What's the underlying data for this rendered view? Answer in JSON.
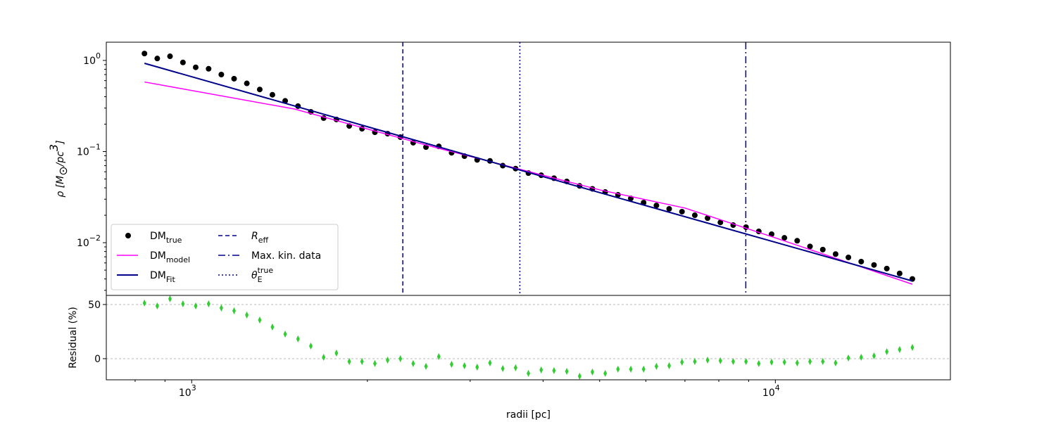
{
  "chart_data": [
    {
      "type": "line",
      "xscale": "log",
      "yscale": "log",
      "ylabel": "ρ [M",
      "ylabel_sub": "⊙",
      "ylabel_mid": "/pc",
      "ylabel_sup": "3",
      "ylabel_end": "]",
      "xlim": [
        714,
        19950
      ],
      "ylim": [
        0.00264,
        1.585
      ],
      "yticks": [
        {
          "value": 0.01,
          "label": "10",
          "sup": "−2"
        },
        {
          "value": 0.1,
          "label": "10",
          "sup": "−1"
        },
        {
          "value": 1,
          "label": "10",
          "sup": "0"
        }
      ],
      "yminorticks": [
        0.003,
        0.004,
        0.005,
        0.006,
        0.007,
        0.008,
        0.009,
        0.02,
        0.03,
        0.04,
        0.05,
        0.06,
        0.07,
        0.08,
        0.09,
        0.2,
        0.3,
        0.4,
        0.5,
        0.6,
        0.7,
        0.8,
        0.9
      ],
      "legend": "lower left",
      "series": [
        {
          "name": "DM",
          "name_sub": "true",
          "color": "#000000",
          "marker": "circle",
          "x": [
            830,
            873,
            918,
            966,
            1016,
            1069,
            1124,
            1182,
            1243,
            1308,
            1375,
            1446,
            1521,
            1600,
            1683,
            1770,
            1862,
            1958,
            2060,
            2166,
            2278,
            2396,
            2520,
            2651,
            2788,
            2933,
            3084,
            3244,
            3412,
            3589,
            3775,
            3970,
            4176,
            4392,
            4620,
            4859,
            5111,
            5375,
            5654,
            5947,
            6255,
            6578,
            6919,
            7278,
            7654,
            8051,
            8468,
            8907,
            9368,
            9853,
            10364,
            10900,
            11465,
            12059,
            12684,
            13341,
            14032,
            14759,
            15523,
            16328,
            17170
          ],
          "values": [
            1.19,
            1.05,
            1.11,
            0.95,
            0.84,
            0.81,
            0.7,
            0.63,
            0.56,
            0.48,
            0.42,
            0.36,
            0.315,
            0.273,
            0.233,
            0.225,
            0.191,
            0.178,
            0.163,
            0.157,
            0.144,
            0.125,
            0.112,
            0.114,
            0.097,
            0.089,
            0.081,
            0.079,
            0.07,
            0.065,
            0.058,
            0.055,
            0.051,
            0.047,
            0.042,
            0.039,
            0.036,
            0.0335,
            0.0306,
            0.0275,
            0.0256,
            0.0235,
            0.0219,
            0.02,
            0.0186,
            0.0167,
            0.0156,
            0.0148,
            0.0133,
            0.0124,
            0.0113,
            0.0105,
            0.0091,
            0.0084,
            0.0075,
            0.0069,
            0.0062,
            0.0057,
            0.0052,
            0.0046,
            0.004
          ]
        },
        {
          "name": "DM",
          "name_sub": "model",
          "color": "#ff00ff",
          "marker": "line",
          "width": 1.5,
          "x": [
            830,
            1500,
            2520,
            5000,
            7000,
            10000,
            17170
          ],
          "values": [
            0.58,
            0.293,
            0.118,
            0.038,
            0.024,
            0.0113,
            0.0035
          ]
        },
        {
          "name": "DM",
          "name_sub": "Fit",
          "color": "#00008b",
          "marker": "line",
          "width": 2,
          "x": [
            830,
            3775,
            17170
          ],
          "values": [
            0.93,
            0.059,
            0.0038
          ]
        }
      ],
      "vlines": [
        {
          "x": 2300,
          "style": "dashed",
          "color": "#00008b",
          "label": "R",
          "label_sub": "eff"
        },
        {
          "x": 8900,
          "style": "dashdot",
          "color": "#00008b",
          "label": "Max. kin. data"
        },
        {
          "x": 3650,
          "style": "dotted",
          "color": "#00008b",
          "label": "θ",
          "label_sub": "E",
          "label_sup": "true"
        }
      ]
    },
    {
      "type": "scatter",
      "xscale": "log",
      "xlabel": "radii [pc]",
      "ylabel": "Residual (%)",
      "xlim": [
        714,
        19950
      ],
      "ylim": [
        -19.5,
        58.4
      ],
      "xticks": [
        {
          "value": 1000,
          "label": "10",
          "sup": "3"
        },
        {
          "value": 10000,
          "label": "10",
          "sup": "4"
        }
      ],
      "xminorticks": [
        800,
        900,
        2000,
        3000,
        4000,
        5000,
        6000,
        7000,
        8000,
        9000
      ],
      "yticks": [
        0,
        50
      ],
      "grid": true,
      "series": [
        {
          "color": "#32cd32",
          "marker": "thin_diamond",
          "x": [
            830,
            873,
            918,
            966,
            1016,
            1069,
            1124,
            1182,
            1243,
            1308,
            1375,
            1446,
            1521,
            1600,
            1683,
            1770,
            1862,
            1958,
            2060,
            2166,
            2278,
            2396,
            2520,
            2651,
            2788,
            2933,
            3084,
            3244,
            3412,
            3589,
            3775,
            3970,
            4176,
            4392,
            4620,
            4859,
            5111,
            5375,
            5654,
            5947,
            6255,
            6578,
            6919,
            7278,
            7654,
            8051,
            8468,
            8907,
            9368,
            9853,
            10364,
            10900,
            11465,
            12059,
            12684,
            13341,
            14032,
            14759,
            15523,
            16328,
            17170
          ],
          "values": [
            51.3,
            48.7,
            55.2,
            50.6,
            48.7,
            50.6,
            46.8,
            44.2,
            40.3,
            35.7,
            29.2,
            22.7,
            18.2,
            11.7,
            1.3,
            5.2,
            -2.6,
            -2.6,
            -4.5,
            -1.3,
            0,
            -4.5,
            -7.1,
            1.9,
            -5.2,
            -6.5,
            -7.8,
            -3.9,
            -9.1,
            -8.4,
            -13.6,
            -10.4,
            -11.0,
            -11.7,
            -16.2,
            -12.3,
            -13.6,
            -9.7,
            -9.7,
            -9.7,
            -7.1,
            -6.5,
            -3.2,
            -2.6,
            -1.3,
            -1.9,
            -2.6,
            -2.6,
            -4.5,
            -3.2,
            -3.2,
            -3.9,
            -2.6,
            -2.6,
            -3.9,
            0.6,
            1.3,
            2.6,
            6.5,
            8.4,
            10.4
          ]
        }
      ]
    }
  ]
}
